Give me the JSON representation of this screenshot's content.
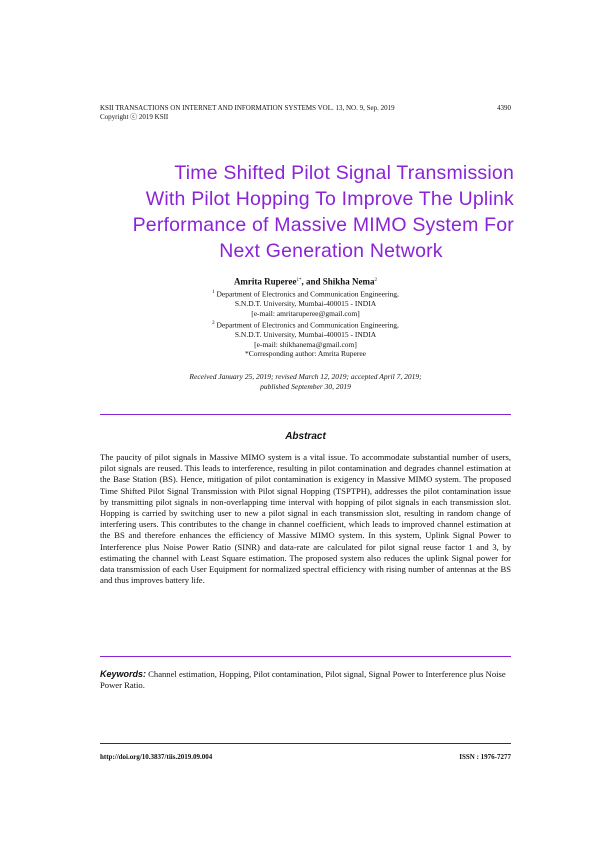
{
  "header": {
    "journal_line": "KSII TRANSACTIONS ON INTERNET AND INFORMATION SYSTEMS VOL. 13, NO. 9, Sep. 2019",
    "page_number": "4390",
    "copyright": "Copyright ⓒ 2019 KSII"
  },
  "title_lines": [
    "Time Shifted Pilot Signal Transmission",
    "With Pilot Hopping To Improve The Uplink",
    "Performance of Massive MIMO System For",
    "Next Generation Network"
  ],
  "authors": {
    "author1": "Amrita Ruperee",
    "author1_sup": "1*",
    "joiner": ", and ",
    "author2": "Shikha Nema",
    "author2_sup": "2"
  },
  "affiliations": [
    {
      "sup": "1",
      "line1": " Department of Electronics and Communication Engineering,",
      "line2": "S.N.D.T. University, Mumbai-400015 - INDIA",
      "email": "[e-mail: amritaruperee@gmail.com]"
    },
    {
      "sup": "2",
      "line1": " Department of Electronics and Communication Engineering,",
      "line2": "S.N.D.T. University, Mumbai-400015 - INDIA",
      "email": "[e-mail: shikhanema@gmail.com]"
    }
  ],
  "corresponding": "*Corresponding author: Amrita Ruperee",
  "dates": {
    "line1": "Received January 25, 2019; revised March 12, 2019; accepted April 7, 2019;",
    "line2": "published September 30, 2019"
  },
  "abstract": {
    "heading": "Abstract",
    "text": "The paucity of pilot signals in Massive MIMO system is a vital issue. To accommodate substantial number of users, pilot signals are reused. This leads to interference, resulting in pilot contamination and degrades channel estimation at the Base Station (BS). Hence, mitigation of pilot contamination is exigency in Massive MIMO system. The proposed Time Shifted Pilot Signal Transmission with Pilot signal Hopping (TSPTPH), addresses the pilot contamination issue by transmitting pilot signals in non-overlapping time interval with hopping of pilot signals in each transmission slot. Hopping is carried by switching user to new a pilot signal in each transmission slot, resulting in random change of interfering users. This contributes to the change in channel coefficient, which leads to improved channel estimation at the BS and therefore enhances the efficiency of Massive MIMO system. In this system, Uplink Signal Power to Interference plus Noise Power Ratio (SINR) and data-rate are calculated for pilot signal reuse factor 1 and 3, by estimating the channel with Least Square estimation. The proposed system also reduces the uplink Signal power for data transmission of each User Equipment for normalized spectral efficiency with rising number of antennas at the BS and thus improves battery life."
  },
  "keywords": {
    "label": "Keywords:",
    "text": " Channel estimation, Hopping, Pilot contamination, Pilot signal, Signal Power to Interference plus Noise Power Ratio."
  },
  "footer": {
    "doi": "http://doi.org/10.3837/tiis.2019.09.004",
    "issn": "ISSN : 1976-7277"
  },
  "colors": {
    "accent": "#8b24d6"
  }
}
